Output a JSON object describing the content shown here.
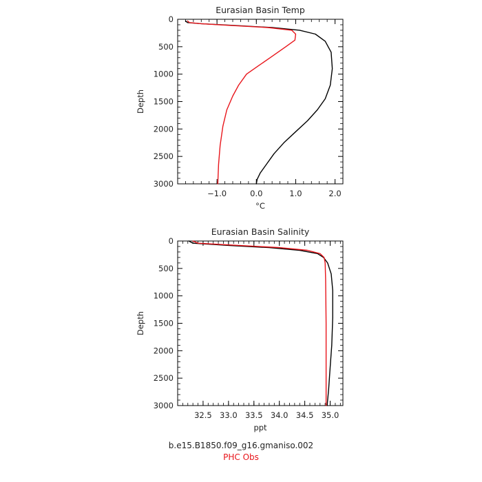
{
  "chart_data": [
    {
      "type": "line",
      "title": "Eurasian Basin Temp",
      "xlabel": "°C",
      "ylabel": "Depth",
      "xlim": [
        -2.0,
        2.2
      ],
      "ylim": [
        3000,
        0
      ],
      "y_inverted": true,
      "xticks": [
        -1.0,
        0.0,
        1.0,
        2.0
      ],
      "xtick_labels": [
        "−1.0",
        "0.0",
        "1.0",
        "2.0"
      ],
      "yticks": [
        0,
        500,
        1000,
        1500,
        2000,
        2500,
        3000
      ],
      "ytick_labels": [
        "0",
        "500",
        "1000",
        "1500",
        "2000",
        "2500",
        "3000"
      ],
      "grid": false,
      "series": [
        {
          "name": "b.e15.B1850.f09_g16.gmaniso.002",
          "color": "#000000",
          "x": [
            -1.8,
            -1.75,
            -1.4,
            -0.6,
            0.4,
            1.1,
            1.5,
            1.75,
            1.9,
            1.93,
            1.88,
            1.75,
            1.55,
            1.3,
            1.0,
            0.7,
            0.45,
            0.25,
            0.1,
            0.02,
            0.0
          ],
          "y": [
            30,
            60,
            80,
            110,
            150,
            200,
            270,
            400,
            600,
            900,
            1200,
            1450,
            1650,
            1850,
            2050,
            2250,
            2450,
            2650,
            2800,
            2920,
            3000
          ]
        },
        {
          "name": "PHC Obs",
          "color": "#e8141a",
          "x": [
            -1.75,
            -1.7,
            -1.4,
            -0.7,
            0.3,
            0.9,
            1.0,
            0.98,
            0.75,
            0.35,
            0.05,
            -0.25,
            -0.45,
            -0.6,
            -0.75,
            -0.85,
            -0.92,
            -0.96,
            -0.98
          ],
          "y": [
            30,
            60,
            80,
            110,
            150,
            200,
            270,
            380,
            500,
            700,
            850,
            1000,
            1200,
            1400,
            1650,
            1950,
            2300,
            2650,
            3000
          ]
        }
      ]
    },
    {
      "type": "line",
      "title": "Eurasian Basin Salinity",
      "xlabel": "ppt",
      "ylabel": "Depth",
      "xlim": [
        32.0,
        35.25
      ],
      "ylim": [
        3000,
        0
      ],
      "y_inverted": true,
      "xticks": [
        32.5,
        33.0,
        33.5,
        34.0,
        34.5,
        35.0
      ],
      "xtick_labels": [
        "32.5",
        "33.0",
        "33.5",
        "34.0",
        "34.5",
        "35.0"
      ],
      "yticks": [
        0,
        500,
        1000,
        1500,
        2000,
        2500,
        3000
      ],
      "ytick_labels": [
        "0",
        "500",
        "1000",
        "1500",
        "2000",
        "2500",
        "3000"
      ],
      "grid": false,
      "series": [
        {
          "name": "b.e15.B1850.f09_g16.gmaniso.002",
          "color": "#000000",
          "x": [
            32.22,
            32.3,
            33.0,
            33.8,
            34.4,
            34.75,
            34.87,
            34.95,
            35.02,
            35.05,
            35.05,
            35.03,
            35.0,
            34.97,
            34.94
          ],
          "y": [
            0,
            40,
            80,
            120,
            170,
            230,
            300,
            400,
            600,
            900,
            1400,
            1900,
            2300,
            2700,
            3000
          ]
        },
        {
          "name": "PHC Obs",
          "color": "#e8141a",
          "x": [
            32.3,
            32.4,
            33.2,
            34.0,
            34.55,
            34.8,
            34.88,
            34.9,
            34.91,
            34.92,
            34.92
          ],
          "y": [
            0,
            40,
            80,
            120,
            170,
            230,
            300,
            400,
            700,
            1500,
            3000
          ]
        }
      ]
    }
  ],
  "captions": {
    "run": "b.e15.B1850.f09_g16.gmaniso.002",
    "obs": "PHC Obs"
  }
}
